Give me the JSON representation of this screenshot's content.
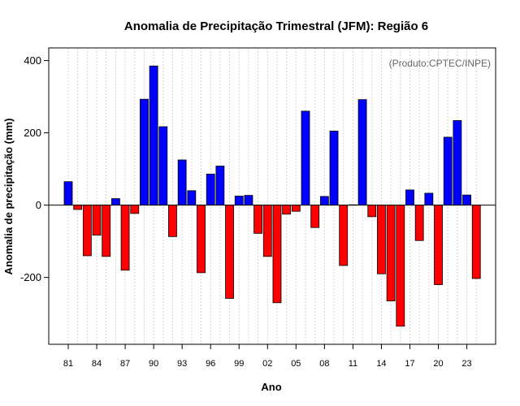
{
  "chart_data": {
    "type": "bar",
    "title": "Anomalia de Precipitação Trimestral (JFM): Região 6",
    "xlabel": "Ano",
    "ylabel": "Anomalia de precipitação (mm)",
    "annotation": "(Produto:CPTEC/INPE)",
    "ylim": [
      -385,
      435
    ],
    "yticks": [
      -200,
      0,
      200,
      400
    ],
    "grid": "vertical-dotted",
    "categories": [
      "81",
      "82",
      "83",
      "84",
      "85",
      "86",
      "87",
      "88",
      "89",
      "90",
      "91",
      "92",
      "93",
      "94",
      "95",
      "96",
      "97",
      "98",
      "99",
      "00",
      "01",
      "02",
      "03",
      "04",
      "05",
      "06",
      "07",
      "08",
      "09",
      "10",
      "11",
      "12",
      "13",
      "14",
      "15",
      "16",
      "17",
      "18",
      "19",
      "20",
      "21",
      "22",
      "23",
      "24"
    ],
    "x_tick_labels": [
      "81",
      "84",
      "87",
      "90",
      "93",
      "96",
      "99",
      "02",
      "05",
      "08",
      "11",
      "14",
      "17",
      "20",
      "23"
    ],
    "values": [
      65,
      -12,
      -140,
      -83,
      -142,
      18,
      -180,
      -23,
      293,
      385,
      217,
      -87,
      125,
      40,
      -187,
      86,
      108,
      -258,
      25,
      27,
      -78,
      -142,
      -270,
      -25,
      -17,
      260,
      -62,
      24,
      205,
      -167,
      1,
      292,
      -32,
      -190,
      -265,
      -335,
      42,
      -98,
      33,
      -220,
      188,
      234,
      28,
      -203
    ],
    "positive_color": "#0000ff",
    "negative_color": "#ff0000",
    "zero_line_color": "#000000",
    "grid_color": "#d3d3d3"
  }
}
